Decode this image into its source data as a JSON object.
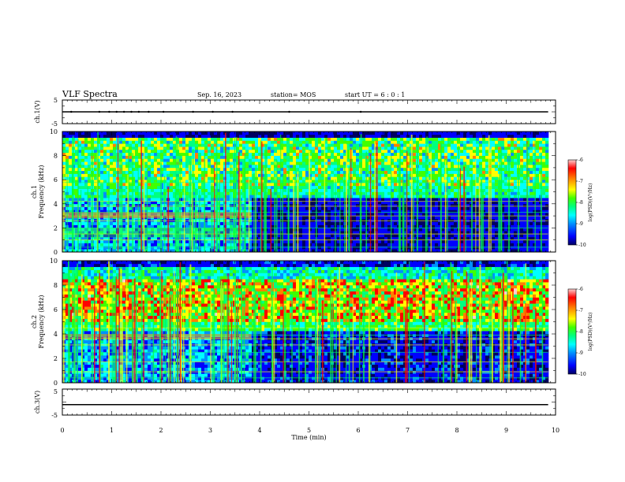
{
  "header": {
    "title": "VLF Spectra",
    "date": "Sep. 16, 2023",
    "station": "station= MOS",
    "start": "start UT =  6 : 0 : 1"
  },
  "colors": {
    "spectrogram_scale": [
      "#000060",
      "#0000ff",
      "#0090ff",
      "#00ffff",
      "#00ff80",
      "#40ff00",
      "#ffff00",
      "#ff8000",
      "#ff0000",
      "#ffd0d0"
    ],
    "trace": "#000000"
  },
  "chart_data": [
    {
      "type": "line",
      "name": "ch1-voltage",
      "ylabel": "ch.1(V)",
      "ylim": [
        -5,
        5
      ],
      "y_ticks": [
        "5",
        "-5"
      ],
      "xlim": [
        0,
        10
      ],
      "x": [
        0,
        9.85
      ],
      "y": [
        0,
        0
      ],
      "spikes_min": [
        0.18,
        0.75,
        0.95,
        1.1,
        1.25,
        1.4,
        1.55,
        1.75,
        2.05,
        2.65,
        3.05,
        3.45,
        4.6,
        6.05
      ]
    },
    {
      "type": "heatmap",
      "name": "ch1-spectrogram",
      "ylabel": "ch.1\nFrequency (kHz)",
      "xlim": [
        0,
        10
      ],
      "data_xmax": 9.85,
      "ylim": [
        0,
        10
      ],
      "y_ticks": [
        "0",
        "2",
        "4",
        "6",
        "8",
        "10"
      ],
      "regime_change_min": 3.83,
      "colorbar": {
        "label": "log(PSD)(V²/Hz)",
        "range": [
          -10,
          -6
        ],
        "ticks": [
          "-10",
          "-9",
          "-8",
          "-7",
          "-6"
        ]
      }
    },
    {
      "type": "heatmap",
      "name": "ch2-spectrogram",
      "ylabel": "ch.2\nFrequency (kHz)",
      "xlim": [
        0,
        10
      ],
      "data_xmax": 9.85,
      "ylim": [
        0,
        10
      ],
      "y_ticks": [
        "0",
        "2",
        "4",
        "6",
        "8",
        "10"
      ],
      "regime_change_min": 3.83,
      "colorbar": {
        "label": "log(PSD)(V²/Hz)",
        "range": [
          -10,
          -6
        ],
        "ticks": [
          "-10",
          "-9",
          "-8",
          "-7",
          "-6"
        ]
      }
    },
    {
      "type": "line",
      "name": "ch3-voltage",
      "ylabel": "ch.3(V)",
      "ylim": [
        -5,
        5
      ],
      "y_ticks": [
        "5",
        "-5"
      ],
      "xlim": [
        0,
        10
      ],
      "x": [
        0,
        9.85
      ],
      "y": [
        -1,
        -1
      ],
      "xlabel": "Time (min)",
      "x_ticks": [
        "0",
        "1",
        "2",
        "3",
        "4",
        "5",
        "6",
        "7",
        "8",
        "9",
        "10"
      ]
    }
  ]
}
